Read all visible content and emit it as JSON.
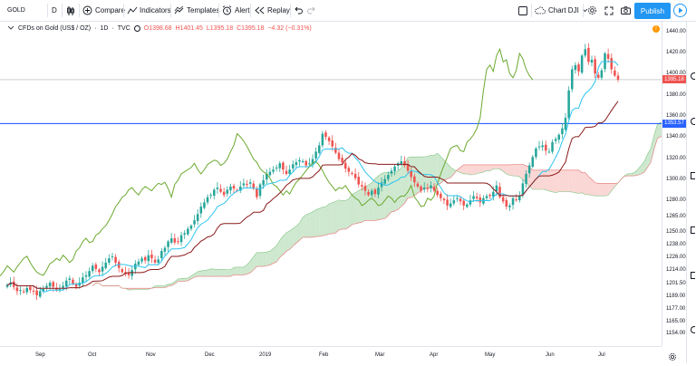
{
  "toolbar": {
    "symbol": "GOLD",
    "interval": "D",
    "compare": "Compare",
    "indicators": "Indicators",
    "templates": "Templates",
    "alert": "Alert",
    "replay": "Replay",
    "chart_layout": "Chart DJI",
    "publish": "Publish"
  },
  "legend": {
    "title": "CFDs on Gold (US$ / OZ)",
    "interval": "1D",
    "source": "TVC",
    "open": "O1398.68",
    "high": "H1401.45",
    "low": "L1395.18",
    "close": "C1395.18",
    "change": "−4.32 (−0.31%)"
  },
  "notice": "!",
  "price_labels": {
    "last": "1395.18",
    "hline": "1353.57"
  },
  "colors": {
    "up": "#26a69a",
    "down": "#ef5350",
    "hline": "#2962ff",
    "lagging_span": "#6ba92f",
    "conversion": "#2ec4f0",
    "base": "#8b1a1a",
    "cloud_bull": "#a5d6a7",
    "cloud_bear": "#f5b7b1",
    "accent": "#2196f3"
  },
  "chart_data": {
    "type": "candlestick",
    "symbol": "GOLD",
    "ylim": [
      1143,
      1450
    ],
    "price_ticks": [
      1440,
      1420,
      1400,
      1380,
      1360,
      1340,
      1320,
      1300,
      1280,
      1265,
      1250,
      1238,
      1226,
      1214,
      1201.5,
      1189,
      1177,
      1165,
      1154
    ],
    "price_tick_labels": [
      "1440.00",
      "1420.00",
      "1400.00",
      "1380.00",
      "1360.00",
      "1340.00",
      "1320.00",
      "1300.00",
      "1280.00",
      "1265.00",
      "1250.00",
      "1238.00",
      "1226.00",
      "1214.00",
      "1201.50",
      "1189.00",
      "1177.00",
      "1165.00",
      "1154.00"
    ],
    "time_labels": [
      "Sep",
      "Oct",
      "Nov",
      "Dec",
      "2019",
      "Feb",
      "Mar",
      "Apr",
      "May",
      "Jun",
      "Jul"
    ],
    "hline": 1353.57,
    "last": 1395.18,
    "closes": [
      1201,
      1203,
      1199,
      1195,
      1196,
      1194,
      1198,
      1196,
      1195,
      1191,
      1195,
      1197,
      1200,
      1203,
      1199,
      1196,
      1197,
      1200,
      1205,
      1207,
      1202,
      1199,
      1203,
      1208,
      1210,
      1214,
      1219,
      1216,
      1213,
      1218,
      1222,
      1226,
      1228,
      1222,
      1217,
      1213,
      1211,
      1210,
      1215,
      1221,
      1223,
      1226,
      1224,
      1229,
      1226,
      1222,
      1225,
      1233,
      1236,
      1242,
      1245,
      1241,
      1242,
      1248,
      1250,
      1254,
      1257,
      1262,
      1268,
      1275,
      1279,
      1284,
      1286,
      1291,
      1293,
      1289,
      1286,
      1291,
      1294,
      1292,
      1290,
      1294,
      1297,
      1296,
      1298,
      1292,
      1284,
      1296,
      1300,
      1306,
      1308,
      1310,
      1312,
      1316,
      1310,
      1306,
      1310,
      1315,
      1317,
      1319,
      1318,
      1314,
      1316,
      1320,
      1327,
      1333,
      1344,
      1341,
      1337,
      1332,
      1326,
      1320,
      1317,
      1311,
      1308,
      1306,
      1302,
      1296,
      1294,
      1290,
      1286,
      1290,
      1287,
      1293,
      1298,
      1301,
      1305,
      1309,
      1313,
      1316,
      1318,
      1314,
      1309,
      1303,
      1298,
      1294,
      1290,
      1293,
      1292,
      1295,
      1290,
      1286,
      1283,
      1281,
      1276,
      1278,
      1281,
      1283,
      1280,
      1276,
      1277,
      1281,
      1285,
      1283,
      1279,
      1283,
      1285,
      1285,
      1289,
      1295,
      1284,
      1280,
      1275,
      1276,
      1283,
      1281,
      1285,
      1297,
      1306,
      1314,
      1322,
      1330,
      1332,
      1333,
      1328,
      1327,
      1336,
      1339,
      1343,
      1349,
      1359,
      1385,
      1405,
      1409,
      1403,
      1418,
      1424,
      1412,
      1414,
      1401,
      1397,
      1404,
      1420,
      1415,
      1405,
      1399,
      1395.18
    ],
    "series": [
      {
        "name": "Conversion Line",
        "color": "#2ec4f0"
      },
      {
        "name": "Base Line",
        "color": "#8b1a1a"
      },
      {
        "name": "Lagging Span",
        "color": "#6ba92f"
      },
      {
        "name": "Leading Span A",
        "color": "#81c784"
      },
      {
        "name": "Leading Span B",
        "color": "#e57373"
      }
    ]
  }
}
